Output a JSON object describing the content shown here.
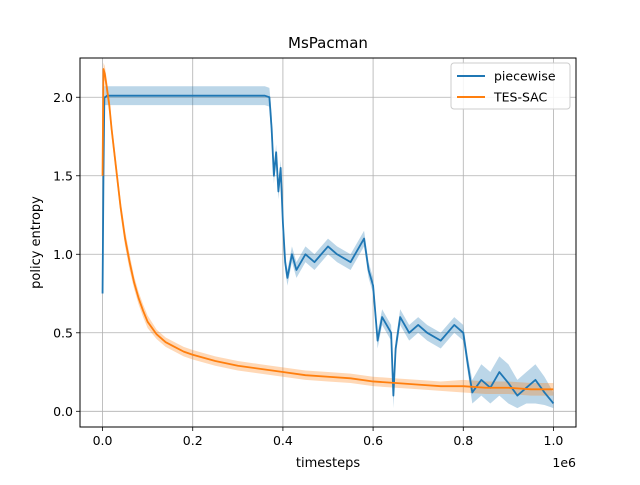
{
  "chart_data": {
    "type": "line",
    "title": "MsPacman",
    "xlabel": "timesteps",
    "ylabel": "policy entropy",
    "x_offset_label": "1e6",
    "xlim": [
      -0.05,
      1.05
    ],
    "ylim": [
      -0.1,
      2.25
    ],
    "x_ticks": [
      0.0,
      0.2,
      0.4,
      0.6,
      0.8,
      1.0
    ],
    "x_tick_labels": [
      "0.0",
      "0.2",
      "0.4",
      "0.6",
      "0.8",
      "1.0"
    ],
    "y_ticks": [
      0.0,
      0.5,
      1.0,
      1.5,
      2.0
    ],
    "y_tick_labels": [
      "0.0",
      "0.5",
      "1.0",
      "1.5",
      "2.0"
    ],
    "grid": true,
    "legend_position": "top-right",
    "series": [
      {
        "name": "piecewise",
        "color": "#1f77b4",
        "x": [
          0.0,
          0.002,
          0.004,
          0.006,
          0.01,
          0.03,
          0.1,
          0.2,
          0.3,
          0.36,
          0.37,
          0.375,
          0.38,
          0.385,
          0.39,
          0.395,
          0.4,
          0.405,
          0.41,
          0.42,
          0.43,
          0.45,
          0.47,
          0.5,
          0.52,
          0.55,
          0.57,
          0.58,
          0.59,
          0.6,
          0.61,
          0.62,
          0.63,
          0.64,
          0.645,
          0.65,
          0.66,
          0.68,
          0.7,
          0.72,
          0.75,
          0.78,
          0.8,
          0.81,
          0.82,
          0.84,
          0.86,
          0.88,
          0.9,
          0.92,
          0.94,
          0.96,
          0.98,
          1.0
        ],
        "y": [
          0.75,
          1.5,
          2.0,
          2.0,
          2.01,
          2.01,
          2.01,
          2.01,
          2.01,
          2.01,
          2.0,
          1.8,
          1.5,
          1.65,
          1.4,
          1.55,
          1.2,
          0.95,
          0.85,
          1.0,
          0.9,
          1.0,
          0.95,
          1.05,
          1.0,
          0.95,
          1.05,
          1.1,
          0.9,
          0.8,
          0.45,
          0.6,
          0.55,
          0.5,
          0.1,
          0.4,
          0.6,
          0.5,
          0.55,
          0.5,
          0.45,
          0.55,
          0.5,
          0.3,
          0.12,
          0.2,
          0.15,
          0.25,
          0.18,
          0.1,
          0.15,
          0.2,
          0.12,
          0.05
        ],
        "band_lower": [
          0.74,
          1.4,
          1.95,
          1.95,
          1.95,
          1.95,
          1.95,
          1.95,
          1.95,
          1.95,
          1.94,
          1.7,
          1.45,
          1.6,
          1.35,
          1.5,
          1.15,
          0.9,
          0.8,
          0.95,
          0.85,
          0.95,
          0.9,
          1.0,
          0.95,
          0.9,
          1.0,
          1.05,
          0.85,
          0.75,
          0.4,
          0.55,
          0.5,
          0.45,
          0.02,
          0.35,
          0.55,
          0.45,
          0.5,
          0.45,
          0.4,
          0.5,
          0.45,
          0.25,
          0.05,
          0.1,
          0.05,
          0.1,
          0.05,
          0.02,
          0.05,
          0.05,
          0.04,
          0.02
        ],
        "band_upper": [
          0.76,
          1.6,
          2.07,
          2.07,
          2.07,
          2.07,
          2.07,
          2.07,
          2.07,
          2.07,
          2.06,
          1.9,
          1.55,
          1.7,
          1.45,
          1.6,
          1.25,
          1.0,
          0.9,
          1.05,
          0.95,
          1.05,
          1.0,
          1.1,
          1.05,
          1.0,
          1.1,
          1.15,
          0.95,
          0.85,
          0.5,
          0.65,
          0.6,
          0.55,
          0.18,
          0.45,
          0.65,
          0.55,
          0.6,
          0.55,
          0.5,
          0.6,
          0.55,
          0.35,
          0.2,
          0.3,
          0.25,
          0.35,
          0.3,
          0.2,
          0.25,
          0.3,
          0.22,
          0.12
        ]
      },
      {
        "name": "TES-SAC",
        "color": "#ff7f0e",
        "x": [
          0.0,
          0.002,
          0.005,
          0.01,
          0.015,
          0.02,
          0.03,
          0.04,
          0.05,
          0.06,
          0.07,
          0.08,
          0.09,
          0.1,
          0.12,
          0.14,
          0.16,
          0.18,
          0.2,
          0.25,
          0.3,
          0.35,
          0.4,
          0.45,
          0.5,
          0.55,
          0.6,
          0.65,
          0.7,
          0.75,
          0.8,
          0.85,
          0.9,
          0.95,
          1.0
        ],
        "y": [
          1.5,
          2.18,
          2.15,
          2.05,
          1.95,
          1.8,
          1.55,
          1.3,
          1.1,
          0.95,
          0.82,
          0.72,
          0.64,
          0.57,
          0.49,
          0.44,
          0.41,
          0.38,
          0.36,
          0.32,
          0.29,
          0.27,
          0.25,
          0.23,
          0.22,
          0.21,
          0.19,
          0.18,
          0.17,
          0.16,
          0.16,
          0.15,
          0.15,
          0.14,
          0.14
        ],
        "band_lower": [
          1.48,
          2.12,
          2.1,
          2.0,
          1.9,
          1.75,
          1.5,
          1.25,
          1.05,
          0.9,
          0.78,
          0.68,
          0.6,
          0.53,
          0.46,
          0.41,
          0.38,
          0.35,
          0.33,
          0.29,
          0.26,
          0.24,
          0.22,
          0.2,
          0.19,
          0.18,
          0.16,
          0.15,
          0.14,
          0.13,
          0.12,
          0.11,
          0.11,
          0.1,
          0.1
        ],
        "band_upper": [
          1.52,
          2.22,
          2.2,
          2.1,
          2.0,
          1.85,
          1.6,
          1.35,
          1.15,
          1.0,
          0.86,
          0.76,
          0.68,
          0.61,
          0.52,
          0.47,
          0.44,
          0.41,
          0.39,
          0.35,
          0.32,
          0.3,
          0.28,
          0.26,
          0.25,
          0.24,
          0.22,
          0.21,
          0.2,
          0.19,
          0.2,
          0.19,
          0.19,
          0.18,
          0.18
        ]
      }
    ]
  }
}
